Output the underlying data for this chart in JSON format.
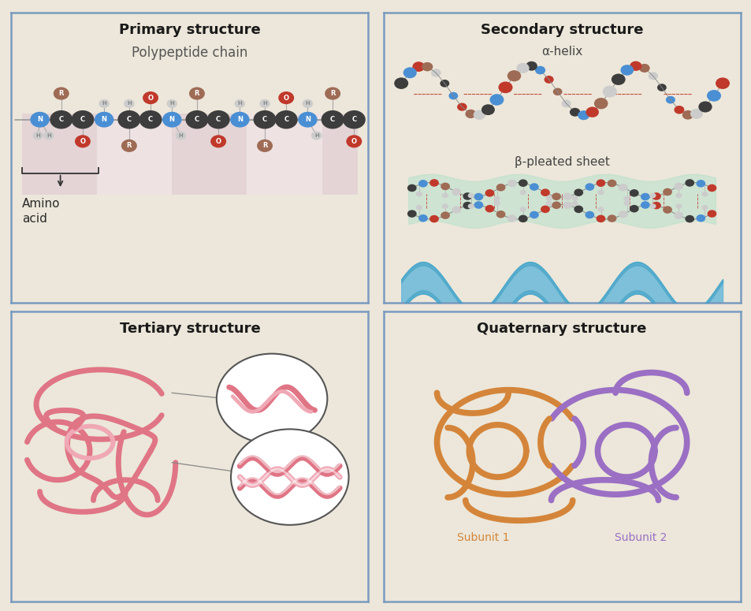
{
  "bg_color": "#ece7da",
  "border_color": "#7a9abf",
  "titles": {
    "primary": "Primary structure",
    "secondary": "Secondary structure",
    "tertiary": "Tertiary structure",
    "quaternary": "Quaternary structure"
  },
  "primary": {
    "subtitle": "Polypeptide chain",
    "atom_colors": {
      "C": "#3d3d3d",
      "N": "#4a8fd4",
      "O": "#c0392b",
      "H": "#cccccc",
      "R": "#9e6b55"
    },
    "stripe_color1": "#e8d5dd",
    "stripe_color2": "#f0e2e8"
  },
  "secondary": {
    "helix_label": "α-helix",
    "sheet_label": "β-pleated sheet",
    "helix_color": "#5ab4d9",
    "sheet_color": "#b8e0cc"
  },
  "tertiary": {
    "protein_color": "#e07585",
    "protein_light": "#f0a8b5",
    "circle_edge": "#555555"
  },
  "quaternary": {
    "subunit1_color": "#d4853a",
    "subunit2_color": "#9b6fc4",
    "subunit1_label": "Subunit 1",
    "subunit2_label": "Subunit 2"
  },
  "title_fontsize": 13,
  "subtitle_fontsize": 12,
  "label_fontsize": 10
}
